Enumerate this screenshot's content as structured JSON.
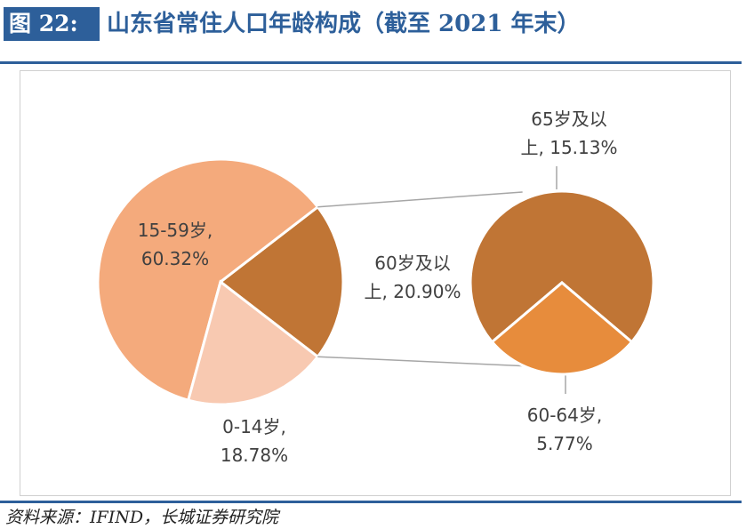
{
  "header": {
    "figure_label": "图 22:",
    "title": "山东省常住人口年龄构成（截至 2021 年末）"
  },
  "source": "资料来源：IFIND，长城证券研究院",
  "colors": {
    "brand": "#2d5f9a",
    "age_15_59": "#f4aa7c",
    "age_0_14": "#f8c9b1",
    "age_60_plus": "#c07535",
    "age_65_plus": "#c07535",
    "age_60_64": "#e78c3c"
  },
  "chart_data": {
    "type": "pie",
    "title": "",
    "main_pie": {
      "slices": [
        {
          "name": "15-59岁",
          "value": 60.32,
          "label_lines": [
            "15-59岁,",
            "60.32%"
          ]
        },
        {
          "name": "0-14岁",
          "value": 18.78,
          "label_lines": [
            "0-14岁,",
            "18.78%"
          ]
        },
        {
          "name": "60岁及以上",
          "value": 20.9,
          "label_lines": [
            "60岁及以",
            "上, 20.90%"
          ]
        }
      ]
    },
    "secondary_pie": {
      "breakdown_of": "60岁及以上",
      "slices": [
        {
          "name": "65岁及以上",
          "value": 15.13,
          "label_lines": [
            "65岁及以",
            "上, 15.13%"
          ]
        },
        {
          "name": "60-64岁",
          "value": 5.77,
          "label_lines": [
            "60-64岁,",
            "5.77%"
          ]
        }
      ]
    }
  }
}
